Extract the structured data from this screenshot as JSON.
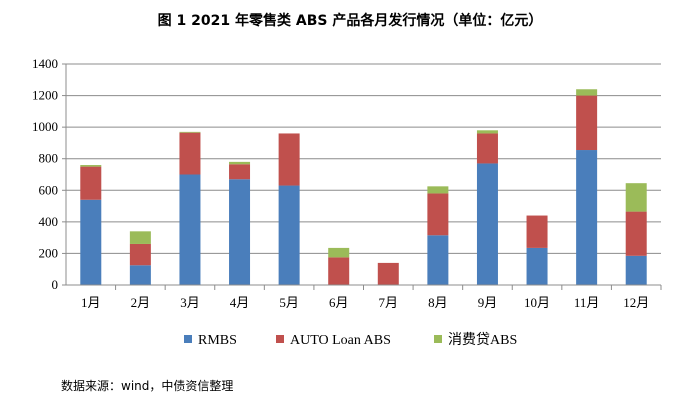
{
  "chart_data": {
    "type": "bar",
    "stacked": true,
    "title": "图 1 2021 年零售类 ABS 产品各月发行情况（单位：亿元）",
    "xlabel": "",
    "ylabel": "",
    "ylim": [
      0,
      1400
    ],
    "yticks": [
      0,
      200,
      400,
      600,
      800,
      1000,
      1200,
      1400
    ],
    "grid": true,
    "legend_position": "bottom",
    "categories": [
      "1月",
      "2月",
      "3月",
      "4月",
      "5月",
      "6月",
      "7月",
      "8月",
      "9月",
      "10月",
      "11月",
      "12月"
    ],
    "series": [
      {
        "name": "RMBS",
        "color": "#4a7ebb",
        "values": [
          540,
          125,
          700,
          670,
          630,
          0,
          0,
          315,
          770,
          235,
          855,
          185
        ]
      },
      {
        "name": "AUTO Loan ABS",
        "color": "#c0504d",
        "values": [
          210,
          135,
          265,
          95,
          330,
          175,
          140,
          265,
          190,
          205,
          345,
          280
        ]
      },
      {
        "name": "消费贷ABS",
        "color": "#9bbb59",
        "values": [
          10,
          80,
          5,
          15,
          0,
          60,
          0,
          45,
          20,
          0,
          40,
          180
        ]
      }
    ]
  },
  "source_note": "数据来源：wind，中债资信整理"
}
